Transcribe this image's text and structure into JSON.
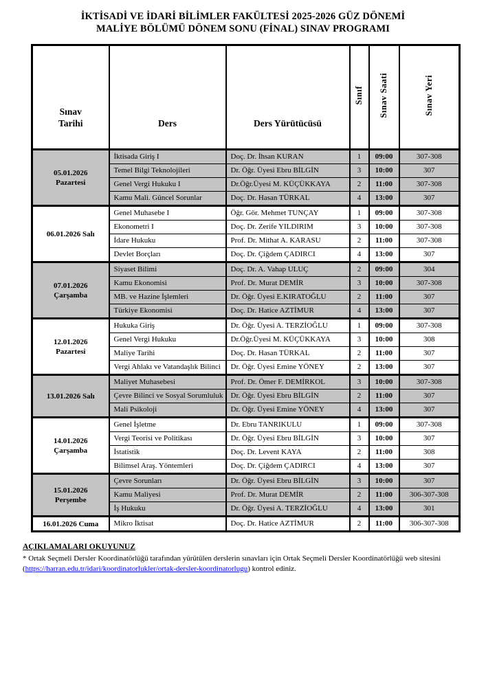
{
  "title": {
    "line1": "İKTİSADİ VE İDARİ BİLİMLER FAKÜLTESİ 2025-2026 GÜZ DÖNEMİ",
    "line2": "MALİYE BÖLÜMÜ DÖNEM SONU (FİNAL) SINAV PROGRAMI"
  },
  "colors": {
    "shaded_row": "#c4c4c4",
    "link": "#0000ee"
  },
  "table": {
    "headers": {
      "date": "Sınav Tarihi",
      "course": "Ders",
      "instructor": "Ders Yürütücüsü",
      "class": "Sınıf",
      "time": "Sınav Saati",
      "place": "Sınav Yeri"
    },
    "groups": [
      {
        "date": "05.01.2026 Pazartesi",
        "shaded": true,
        "rows": [
          {
            "course": "İktisada Giriş I",
            "instructor": "Doç. Dr. İhsan KURAN",
            "class": "1",
            "time": "09:00",
            "place": "307-308"
          },
          {
            "course": "Temel Bilgi Teknolojileri",
            "instructor": "Dr. Öğr. Üyesi Ebru BİLGİN",
            "class": "3",
            "time": "10:00",
            "place": "307"
          },
          {
            "course": "Genel Vergi Hukuku I",
            "instructor": "Dr.Öğr.Üyesi M. KÜÇÜKKAYA",
            "class": "2",
            "time": "11:00",
            "place": "307-308"
          },
          {
            "course": "Kamu Mali. Güncel Sorunlar",
            "instructor": "Doç. Dr. Hasan TÜRKAL",
            "class": "4",
            "time": "13:00",
            "place": "307"
          }
        ]
      },
      {
        "date": "06.01.2026 Salı",
        "shaded": false,
        "rows": [
          {
            "course": "Genel Muhasebe I",
            "instructor": "Öğr. Gör. Mehmet TUNÇAY",
            "class": "1",
            "time": "09:00",
            "place": "307-308"
          },
          {
            "course": "Ekonometri I",
            "instructor": "Doç. Dr. Zerife YILDIRIM",
            "class": "3",
            "time": "10:00",
            "place": "307-308"
          },
          {
            "course": "İdare Hukuku",
            "instructor": "Prof. Dr. Mithat A. KARASU",
            "class": "2",
            "time": "11:00",
            "place": "307-308"
          },
          {
            "course": "Devlet Borçları",
            "instructor": "Doç. Dr. Çiğdem ÇADIRCI",
            "class": "4",
            "time": "13:00",
            "place": "307"
          }
        ]
      },
      {
        "date": "07.01.2026 Çarşamba",
        "shaded": true,
        "rows": [
          {
            "course": "Siyaset Bilimi",
            "instructor": "Doç. Dr. A. Vahap ULUÇ",
            "class": "2",
            "time": "09:00",
            "place": "304"
          },
          {
            "course": "Kamu Ekonomisi",
            "instructor": "Prof. Dr. Murat DEMİR",
            "class": "3",
            "time": "10:00",
            "place": "307-308"
          },
          {
            "course": "MB. ve Hazine İşlemleri",
            "instructor": "Dr. Öğr. Üyesi E.KIRATOĞLU",
            "class": "2",
            "time": "11:00",
            "place": "307"
          },
          {
            "course": "Türkiye Ekonomisi",
            "instructor": "Doç. Dr. Hatice AZTİMUR",
            "class": "4",
            "time": "13:00",
            "place": "307"
          }
        ]
      },
      {
        "date": "12.01.2026 Pazartesi",
        "shaded": false,
        "rows": [
          {
            "course": "Hukuka Giriş",
            "instructor": "Dr. Öğr. Üyesi A. TERZİOĞLU",
            "class": "1",
            "time": "09:00",
            "place": "307-308"
          },
          {
            "course": "Genel Vergi Hukuku",
            "instructor": "Dr.Öğr.Üyesi M. KÜÇÜKKAYA",
            "class": "3",
            "time": "10:00",
            "place": "308"
          },
          {
            "course": "Maliye Tarihi",
            "instructor": "Doç. Dr. Hasan TÜRKAL",
            "class": "2",
            "time": "11:00",
            "place": "307"
          },
          {
            "course": "Vergi Ahlakı ve Vatandaşlık Bilinci",
            "instructor": "Dr. Öğr. Üyesi Emine YÖNEY",
            "class": "2",
            "time": "13:00",
            "place": "307"
          }
        ]
      },
      {
        "date": "13.01.2026 Salı",
        "shaded": true,
        "rows": [
          {
            "course": "Maliyet Muhasebesi",
            "instructor": "Prof. Dr. Ömer F. DEMİRKOL",
            "class": "3",
            "time": "10:00",
            "place": "307-308"
          },
          {
            "course": "Çevre Bilinci ve Sosyal Sorumluluk",
            "instructor": "Dr. Öğr. Üyesi Ebru BİLGİN",
            "class": "2",
            "time": "11:00",
            "place": "307"
          },
          {
            "course": "Mali Psikoloji",
            "instructor": "Dr. Öğr. Üyesi Emine YÖNEY",
            "class": "4",
            "time": "13:00",
            "place": "307"
          }
        ]
      },
      {
        "date": "14.01.2026 Çarşamba",
        "shaded": false,
        "rows": [
          {
            "course": "Genel İşletme",
            "instructor": "Dr. Ebru TANRIKULU",
            "class": "1",
            "time": "09:00",
            "place": "307-308"
          },
          {
            "course": "Vergi Teorisi ve Politikası",
            "instructor": "Dr. Öğr. Üyesi Ebru BİLGİN",
            "class": "3",
            "time": "10:00",
            "place": "307"
          },
          {
            "course": "İstatistik",
            "instructor": "Doç. Dr. Levent KAYA",
            "class": "2",
            "time": "11:00",
            "place": "308"
          },
          {
            "course": "Bilimsel Araş. Yöntemleri",
            "instructor": "Doç. Dr. Çiğdem ÇADIRCI",
            "class": "4",
            "time": "13:00",
            "place": "307"
          }
        ]
      },
      {
        "date": "15.01.2026 Perşembe",
        "shaded": true,
        "rows": [
          {
            "course": "Çevre Sorunları",
            "instructor": "Dr. Öğr. Üyesi Ebru BİLGİN",
            "class": "3",
            "time": "10:00",
            "place": "307"
          },
          {
            "course": "Kamu Maliyesi",
            "instructor": "Prof. Dr. Murat DEMİR",
            "class": "2",
            "time": "11:00",
            "place": "306-307-308"
          },
          {
            "course": "İş Hukuku",
            "instructor": "Dr. Öğr. Üyesi A. TERZİOĞLU",
            "class": "4",
            "time": "13:00",
            "place": "301"
          }
        ]
      },
      {
        "date": "16.01.2026 Cuma",
        "shaded": false,
        "rows": [
          {
            "course": "Mikro İktisat",
            "instructor": "Doç. Dr. Hatice AZTİMUR",
            "class": "2",
            "time": "11:00",
            "place": "306-307-308"
          }
        ]
      }
    ]
  },
  "footer": {
    "heading": "AÇIKLAMALARI OKUYUNUZ",
    "note_line1": "* Ortak Seçmeli Dersler Koordinatörlüğü tarafından yürütülen derslerin sınavları için Ortak Seçmeli Dersler Koordinatörlüğü web sitesini",
    "paren_open": "(",
    "link_text": "https://harran.edu.tr/idari/koordinatorlukler/ortak-dersler-koordinatorlugu",
    "note_after_link": ") kontrol ediniz."
  }
}
